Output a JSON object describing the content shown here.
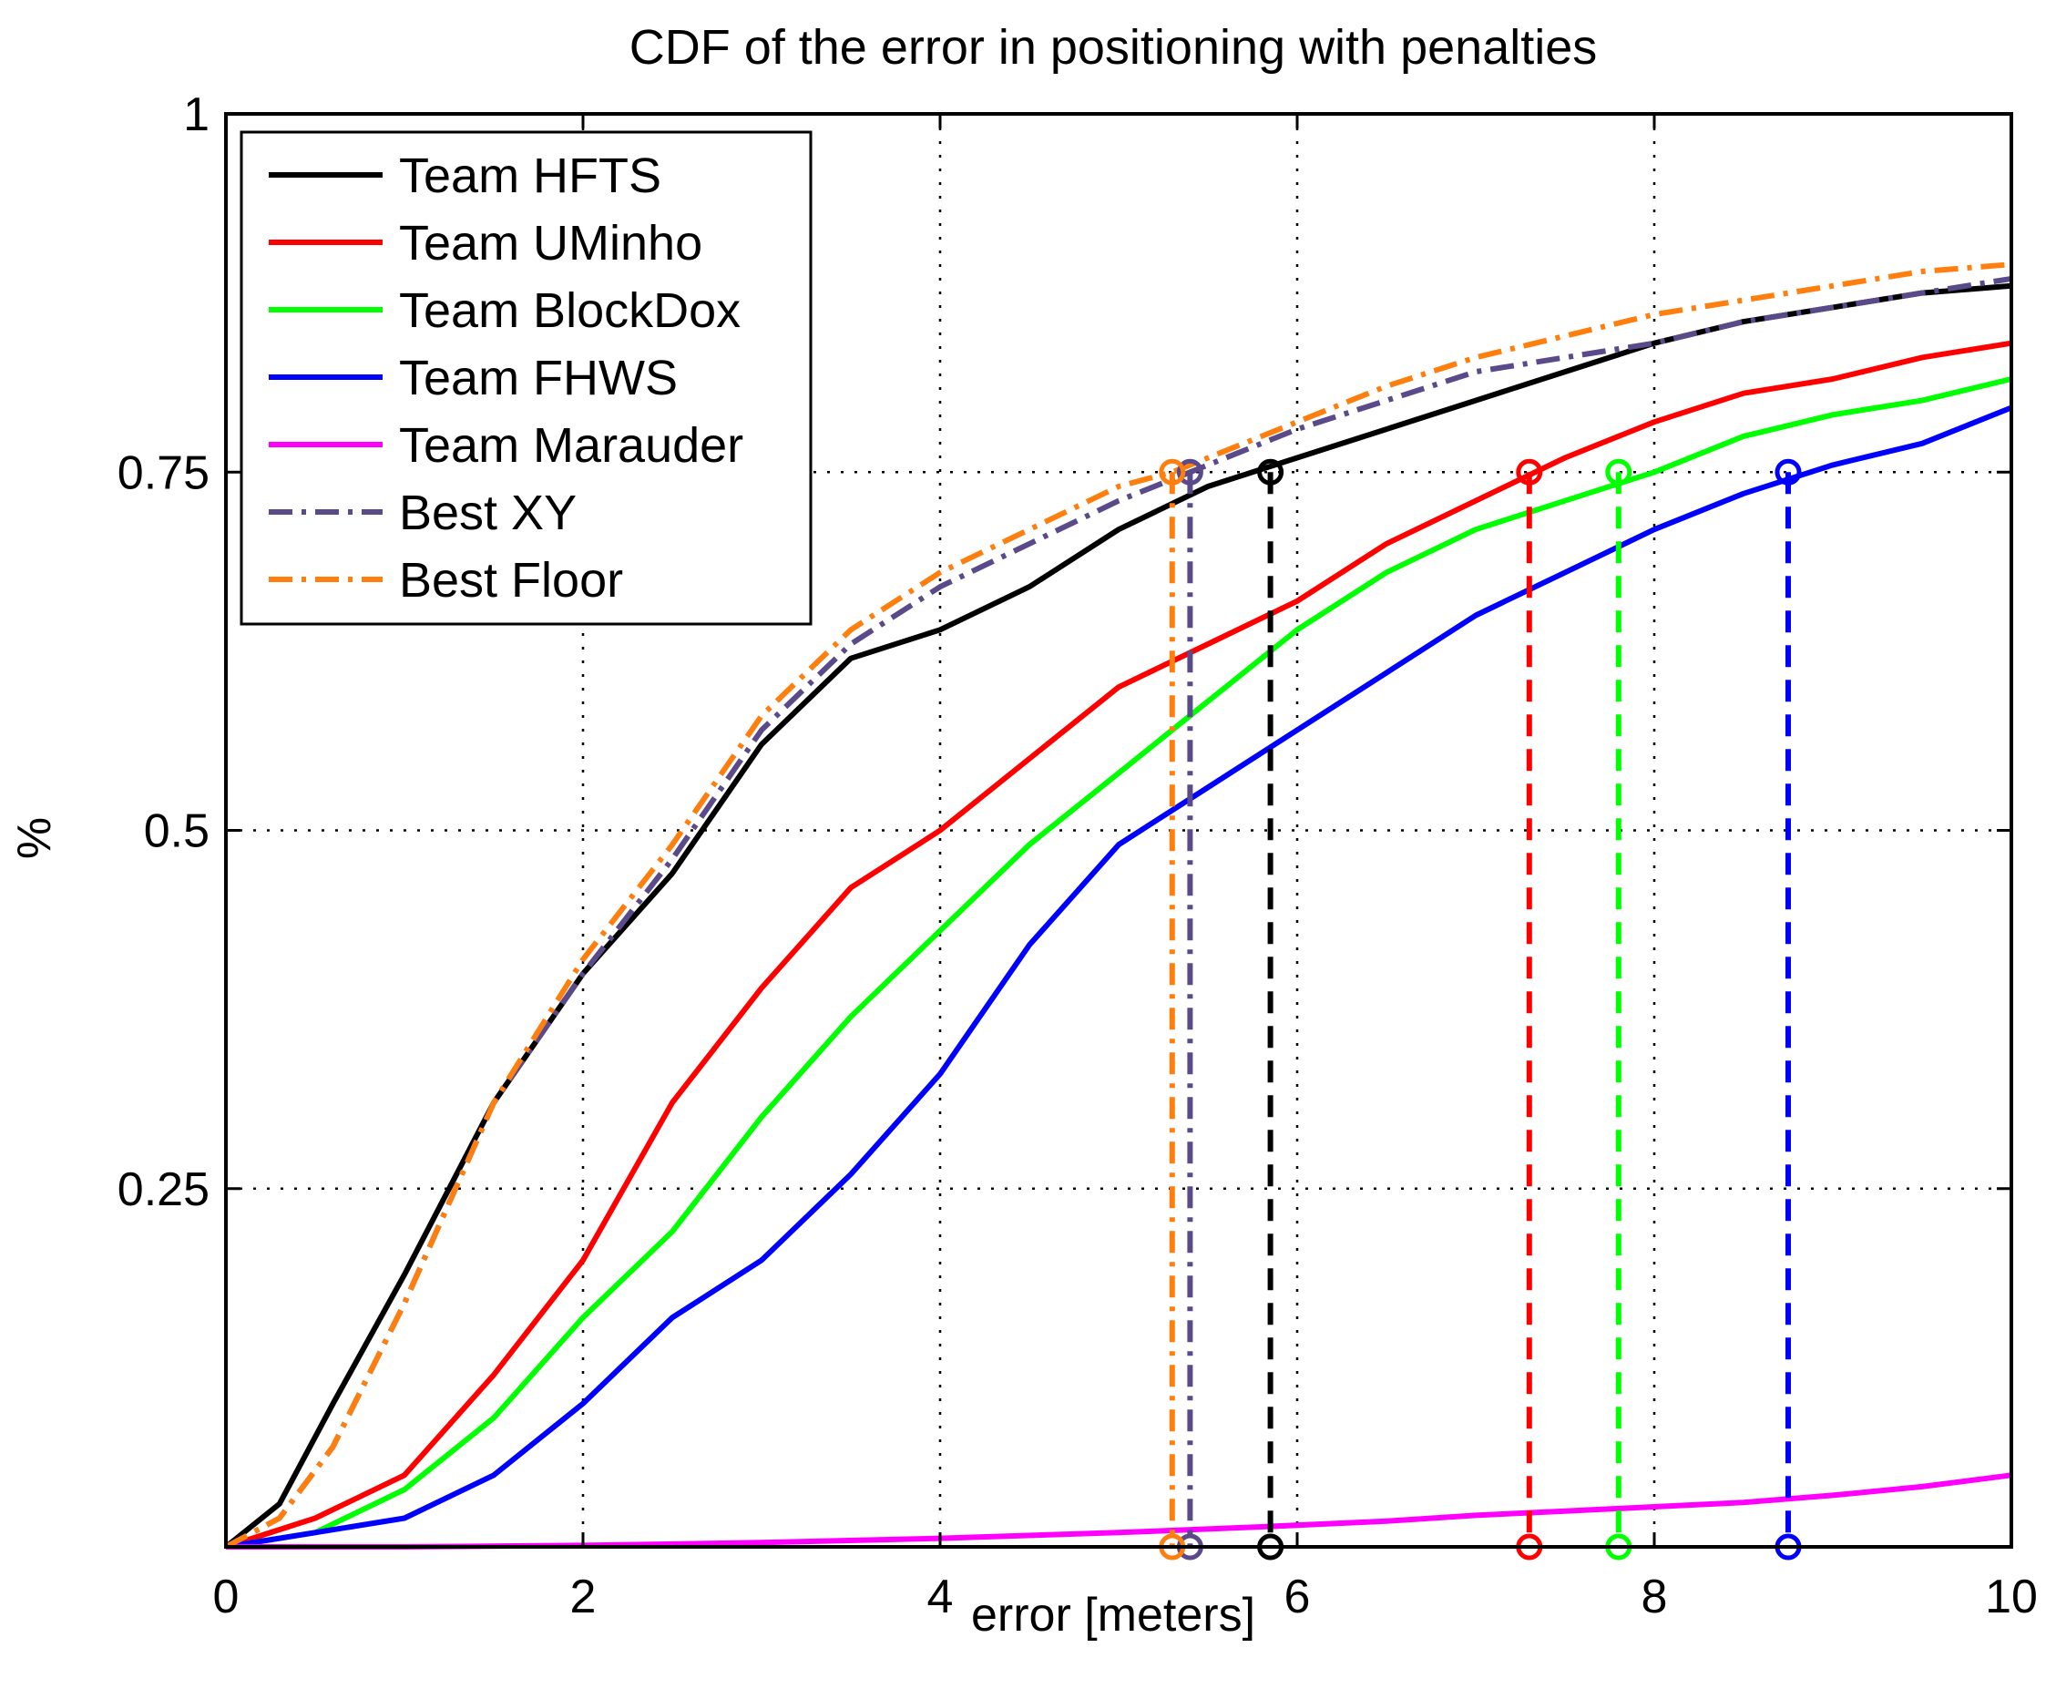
{
  "chart_data": {
    "type": "line",
    "title": "CDF of the error in positioning with penalties",
    "xlabel": "error [meters]",
    "ylabel": "%",
    "xlim": [
      0,
      10
    ],
    "ylim": [
      0,
      1
    ],
    "grid": true,
    "legend_position": "top-left",
    "x_ticks": [
      0,
      2,
      4,
      6,
      8,
      10
    ],
    "x_tick_labels": [
      "0",
      "2",
      "4",
      "6",
      "8",
      "10"
    ],
    "y_ticks": [
      0.25,
      0.5,
      0.75,
      1
    ],
    "y_tick_labels": [
      "0.25",
      "0.5",
      "0.75",
      "1"
    ],
    "series": [
      {
        "name": "Team HFTS",
        "color": "#000000",
        "dash": "solid",
        "x": [
          0,
          0.3,
          0.6,
          1.0,
          1.5,
          2.0,
          2.5,
          3.0,
          3.5,
          4.0,
          4.5,
          5.0,
          5.5,
          6.0,
          6.5,
          7.0,
          7.5,
          8.0,
          8.5,
          9.0,
          9.5,
          10.0
        ],
        "y": [
          0,
          0.03,
          0.1,
          0.19,
          0.31,
          0.4,
          0.47,
          0.56,
          0.62,
          0.64,
          0.67,
          0.71,
          0.74,
          0.76,
          0.78,
          0.8,
          0.82,
          0.84,
          0.855,
          0.865,
          0.875,
          0.88
        ],
        "p75": 5.85
      },
      {
        "name": "Team UMinho",
        "color": "#ff0000",
        "dash": "solid",
        "x": [
          0,
          0.5,
          1.0,
          1.5,
          2.0,
          2.5,
          3.0,
          3.5,
          4.0,
          4.5,
          5.0,
          5.5,
          6.0,
          6.5,
          7.0,
          7.5,
          8.0,
          8.5,
          9.0,
          9.5,
          10.0
        ],
        "y": [
          0,
          0.02,
          0.05,
          0.12,
          0.2,
          0.31,
          0.39,
          0.46,
          0.5,
          0.55,
          0.6,
          0.63,
          0.66,
          0.7,
          0.73,
          0.76,
          0.785,
          0.805,
          0.815,
          0.83,
          0.84
        ],
        "p75": 7.3
      },
      {
        "name": "Team BlockDox",
        "color": "#00ff00",
        "dash": "solid",
        "x": [
          0,
          0.5,
          1.0,
          1.5,
          2.0,
          2.5,
          3.0,
          3.5,
          4.0,
          4.5,
          5.0,
          5.5,
          6.0,
          6.5,
          7.0,
          7.5,
          8.0,
          8.5,
          9.0,
          9.5,
          10.0
        ],
        "y": [
          0,
          0.01,
          0.04,
          0.09,
          0.16,
          0.22,
          0.3,
          0.37,
          0.43,
          0.49,
          0.54,
          0.59,
          0.64,
          0.68,
          0.71,
          0.73,
          0.75,
          0.775,
          0.79,
          0.8,
          0.815
        ],
        "p75": 7.8
      },
      {
        "name": "Team FHWS",
        "color": "#0000ff",
        "dash": "solid",
        "x": [
          0,
          0.5,
          1.0,
          1.5,
          2.0,
          2.5,
          3.0,
          3.5,
          4.0,
          4.5,
          5.0,
          5.5,
          6.0,
          6.5,
          7.0,
          7.5,
          8.0,
          8.5,
          9.0,
          9.5,
          10.0
        ],
        "y": [
          0,
          0.01,
          0.02,
          0.05,
          0.1,
          0.16,
          0.2,
          0.26,
          0.33,
          0.42,
          0.49,
          0.53,
          0.57,
          0.61,
          0.65,
          0.68,
          0.71,
          0.735,
          0.755,
          0.77,
          0.795
        ],
        "p75": 8.75
      },
      {
        "name": "Team Marauder",
        "color": "#ff00ff",
        "dash": "solid",
        "x": [
          0,
          1.0,
          2.0,
          3.0,
          4.0,
          5.0,
          5.8,
          6.5,
          7.0,
          7.5,
          8.0,
          8.5,
          9.0,
          9.5,
          10.0
        ],
        "y": [
          0,
          0,
          0.001,
          0.003,
          0.006,
          0.01,
          0.014,
          0.018,
          0.022,
          0.025,
          0.028,
          0.031,
          0.036,
          0.042,
          0.05
        ],
        "p75": null
      },
      {
        "name": "Best XY",
        "color": "#5a4a8a",
        "dash": "dashdot",
        "x": [
          0,
          0.3,
          0.6,
          1.0,
          1.5,
          2.0,
          2.5,
          3.0,
          3.5,
          4.0,
          4.5,
          5.0,
          5.4,
          6.0,
          6.5,
          7.0,
          7.5,
          8.0,
          8.5,
          9.0,
          9.5,
          10.0
        ],
        "y": [
          0,
          0.02,
          0.07,
          0.17,
          0.31,
          0.4,
          0.48,
          0.57,
          0.63,
          0.67,
          0.7,
          0.73,
          0.75,
          0.78,
          0.8,
          0.82,
          0.83,
          0.84,
          0.855,
          0.865,
          0.875,
          0.885
        ],
        "p75": 5.4
      },
      {
        "name": "Best Floor",
        "color": "#ff7f0e",
        "dash": "dashdot",
        "x": [
          0,
          0.3,
          0.6,
          1.0,
          1.5,
          2.0,
          2.5,
          3.0,
          3.5,
          4.0,
          4.5,
          5.0,
          5.3,
          6.0,
          6.5,
          7.0,
          7.5,
          8.0,
          8.5,
          9.0,
          9.5,
          10.0
        ],
        "y": [
          0,
          0.02,
          0.07,
          0.17,
          0.31,
          0.41,
          0.49,
          0.58,
          0.64,
          0.68,
          0.71,
          0.74,
          0.75,
          0.785,
          0.81,
          0.83,
          0.845,
          0.86,
          0.87,
          0.88,
          0.89,
          0.895
        ],
        "p75": 5.3
      }
    ]
  }
}
